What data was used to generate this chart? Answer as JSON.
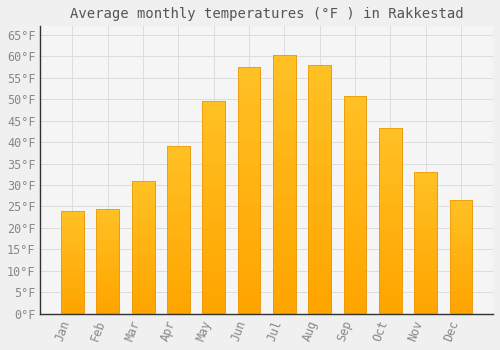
{
  "title": "Average monthly temperatures (°F ) in Rakkestad",
  "months": [
    "Jan",
    "Feb",
    "Mar",
    "Apr",
    "May",
    "Jun",
    "Jul",
    "Aug",
    "Sep",
    "Oct",
    "Nov",
    "Dec"
  ],
  "values": [
    23.9,
    24.4,
    30.9,
    39.0,
    49.6,
    57.6,
    60.3,
    57.9,
    50.7,
    43.3,
    33.1,
    26.4
  ],
  "bar_color_top": "#FFC125",
  "bar_color_bottom": "#FFA500",
  "bar_edge_color": "#E8960A",
  "background_color": "#F0F0F0",
  "plot_bg_color": "#F5F5F5",
  "grid_color": "#DDDDDD",
  "text_color": "#888888",
  "title_color": "#555555",
  "spine_color": "#333333",
  "ylim": [
    0,
    67
  ],
  "yticks": [
    0,
    5,
    10,
    15,
    20,
    25,
    30,
    35,
    40,
    45,
    50,
    55,
    60,
    65
  ],
  "title_fontsize": 10,
  "tick_fontsize": 8.5
}
